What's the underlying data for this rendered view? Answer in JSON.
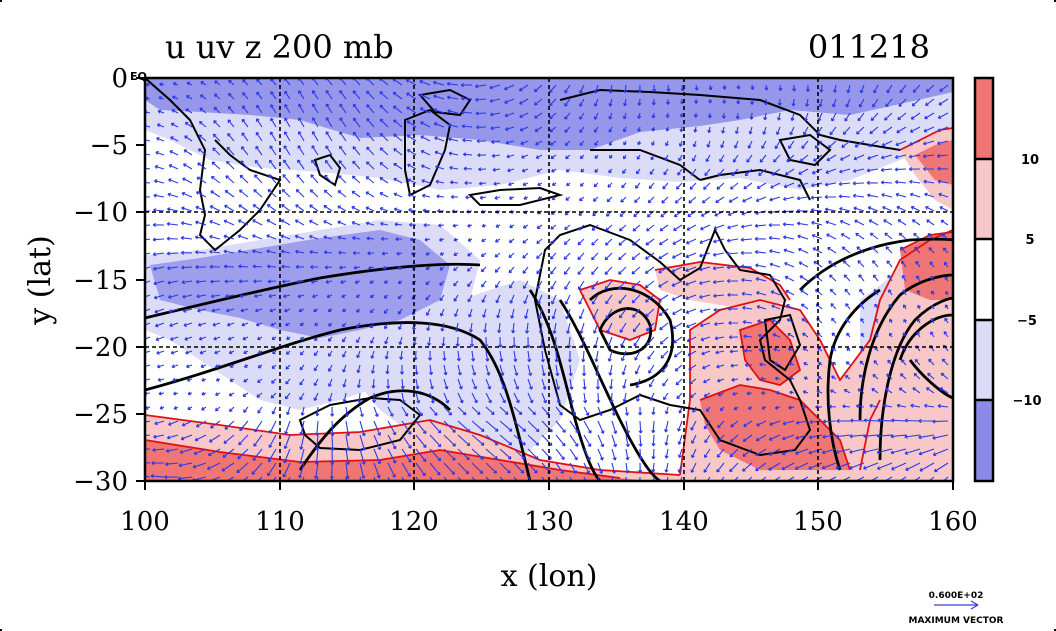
{
  "title_left": "u uv z 200 mb",
  "title_right": "011218",
  "xlabel": "x (lon)",
  "ylabel": "y (lat)",
  "x_ticks": [
    "100",
    "110",
    "120",
    "130",
    "140",
    "150",
    "160"
  ],
  "y_ticks": [
    "0",
    "−5",
    "−10",
    "−15",
    "−20",
    "−25",
    "−30"
  ],
  "eq_label": "EQ",
  "colorbar": {
    "tick_labels": [
      "10",
      "5",
      "−5",
      "−10"
    ],
    "colors": [
      "#f07575",
      "#f8c8c8",
      "#ffffff",
      "#dcdcf8",
      "#8a8ae8"
    ]
  },
  "vector_legend": {
    "value": "0.600E+02",
    "label": "MAXIMUM VECTOR"
  },
  "chart_data": {
    "type": "heatmap",
    "title": "u uv z 200 mb",
    "date": "011218",
    "xlabel": "x (lon)",
    "ylabel": "y (lat)",
    "xlim": [
      100,
      160
    ],
    "ylim": [
      -30,
      0
    ],
    "grid": true,
    "shading_levels": [
      -10,
      -5,
      5,
      10
    ],
    "overlays": [
      "u shading",
      "uv wind vectors",
      "z contours"
    ]
  }
}
